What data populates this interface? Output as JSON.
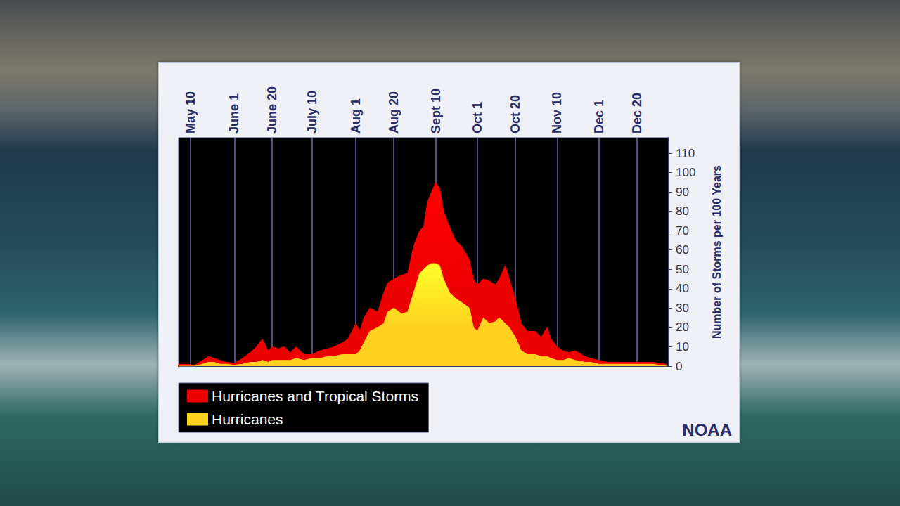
{
  "chart_data": {
    "type": "area",
    "y_label": "Number of Storms per 100 Years",
    "x": [
      124,
      128,
      132,
      136,
      139,
      142,
      145,
      148,
      152,
      156,
      160,
      163,
      166,
      169,
      171,
      174,
      177,
      180,
      183,
      187,
      191,
      195,
      199,
      202,
      206,
      209,
      213,
      215,
      217,
      220,
      224,
      227,
      229,
      232,
      236,
      239,
      242,
      245,
      247,
      249,
      251,
      253,
      255,
      257,
      260,
      263,
      266,
      270,
      272,
      274,
      277,
      280,
      283,
      285,
      288,
      290,
      293,
      296,
      299,
      303,
      306,
      309,
      311,
      314,
      317,
      320,
      323,
      328,
      331,
      335,
      340,
      346,
      354,
      362,
      369
    ],
    "series": [
      {
        "name": "Hurricanes and Tropical Storms",
        "color": "#ee0000",
        "values": [
          1,
          1,
          0.5,
          3,
          5,
          4,
          3,
          2,
          1.5,
          4,
          7,
          10,
          14,
          8,
          10,
          9,
          10,
          7,
          10,
          6,
          6,
          8,
          9,
          10,
          12,
          14,
          22,
          18,
          25,
          30,
          28,
          38,
          43,
          45,
          47,
          48,
          62,
          70,
          72,
          85,
          90,
          95,
          92,
          80,
          72,
          65,
          62,
          55,
          45,
          42,
          45,
          44,
          42,
          45,
          52,
          45,
          35,
          22,
          18,
          18,
          15,
          20,
          14,
          10,
          8,
          7,
          8,
          5,
          4,
          3,
          2,
          2,
          2,
          2,
          1
        ]
      },
      {
        "name": "Hurricanes",
        "color": "#ffd21f",
        "values": [
          0,
          0,
          0,
          1,
          2,
          2,
          1,
          1,
          0.5,
          1,
          2,
          2,
          3,
          2,
          3,
          3,
          3,
          3,
          4,
          3,
          4,
          4,
          5,
          5,
          6,
          6,
          6,
          8,
          12,
          18,
          20,
          22,
          28,
          30,
          27,
          28,
          38,
          48,
          50,
          52,
          53,
          53,
          52,
          45,
          38,
          35,
          33,
          30,
          20,
          18,
          25,
          22,
          23,
          25,
          22,
          20,
          15,
          8,
          6,
          6,
          5,
          5,
          4,
          3,
          3,
          4,
          3,
          2,
          2,
          1,
          1,
          1,
          1,
          1,
          0
        ]
      }
    ],
    "xlim": [
      124,
      370
    ],
    "xticks": [
      {
        "value": 130,
        "label": "May 10"
      },
      {
        "value": 152,
        "label": "June 1"
      },
      {
        "value": 171,
        "label": "June 20"
      },
      {
        "value": 191,
        "label": "July 10"
      },
      {
        "value": 213,
        "label": "Aug 1"
      },
      {
        "value": 232,
        "label": "Aug 20"
      },
      {
        "value": 253,
        "label": "Sept 10"
      },
      {
        "value": 274,
        "label": "Oct 1"
      },
      {
        "value": 293,
        "label": "Oct 20"
      },
      {
        "value": 314,
        "label": "Nov 10"
      },
      {
        "value": 335,
        "label": "Dec 1"
      },
      {
        "value": 354,
        "label": "Dec 20"
      }
    ],
    "ylim": [
      0,
      118
    ],
    "yticks": [
      0,
      10,
      20,
      30,
      40,
      50,
      60,
      70,
      80,
      90,
      100,
      110
    ],
    "grid": true,
    "stacked": false,
    "legend": "bottom left",
    "annotations": [
      "NOAA"
    ]
  }
}
